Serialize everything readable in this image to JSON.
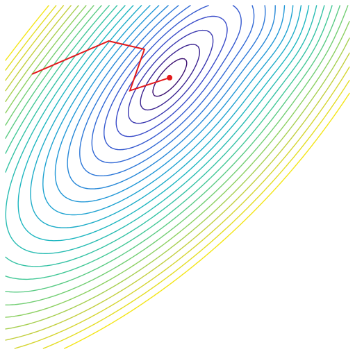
{
  "chart_data": {
    "type": "contour",
    "title": "",
    "xlabel": "",
    "ylabel": "",
    "xlim": [
      -1.6,
      1.0
    ],
    "ylim": [
      -2.2,
      0.7
    ],
    "grid": false,
    "legend": "none",
    "colormap": [
      "#3b0f70",
      "#3a47c8",
      "#2f6fd8",
      "#1e9bd7",
      "#1db6c0",
      "#3cc79a",
      "#7ed06a",
      "#c9cf3a",
      "#f4e516"
    ],
    "contour_levels": [
      0.02,
      0.06,
      0.12,
      0.2,
      0.3,
      0.42,
      0.56,
      0.72,
      0.9,
      1.1,
      1.32,
      1.56,
      1.82,
      2.1,
      2.4,
      2.72,
      3.06,
      3.42,
      3.8,
      4.2,
      4.62,
      5.06,
      5.52
    ],
    "optimizer_path": {
      "color": "#e31a1c",
      "points": [
        [
          -1.4,
          0.12
        ],
        [
          -0.82,
          0.4
        ],
        [
          -0.55,
          0.33
        ],
        [
          -0.66,
          -0.02
        ],
        [
          -0.36,
          0.09
        ]
      ],
      "end_marker": [
        -0.36,
        0.09
      ]
    }
  }
}
